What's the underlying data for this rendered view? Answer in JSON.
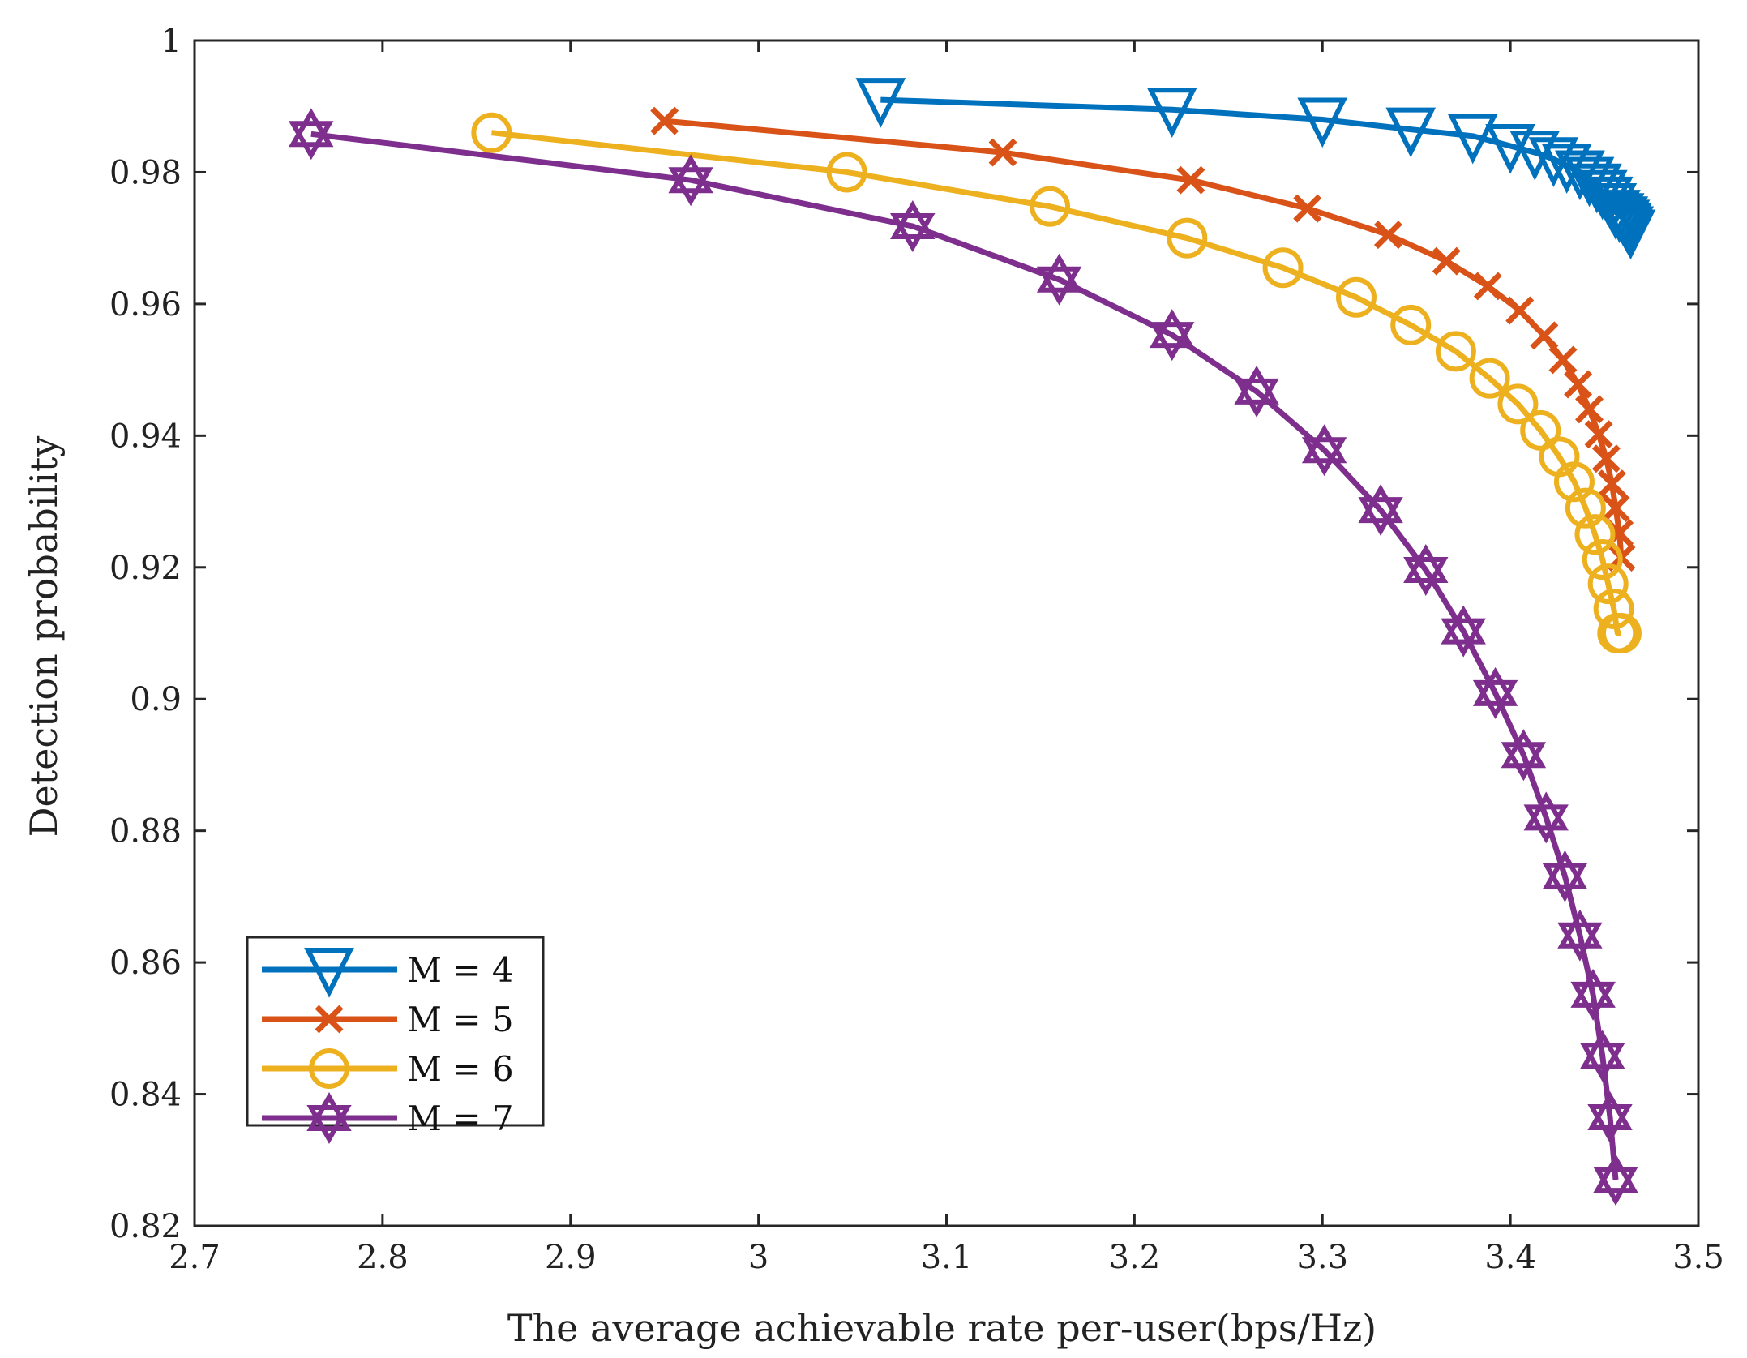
{
  "chart_data": {
    "type": "line",
    "title": "",
    "xlabel": "The average achievable rate per-user(bps/Hz)",
    "ylabel": "Detection probability",
    "xlim": [
      2.7,
      3.5
    ],
    "ylim": [
      0.82,
      1.0
    ],
    "xticks": [
      "2.7",
      "2.8",
      "2.9",
      "3",
      "3.1",
      "3.2",
      "3.3",
      "3.4",
      "3.5"
    ],
    "yticks": [
      "0.82",
      "0.84",
      "0.86",
      "0.88",
      "0.9",
      "0.92",
      "0.94",
      "0.96",
      "0.98",
      "1"
    ],
    "legend_position": "bottom-left",
    "series": [
      {
        "name": "M = 4",
        "color": "#0072BD",
        "marker": "triangle-down",
        "x": [
          3.065,
          3.22,
          3.3,
          3.347,
          3.38,
          3.4,
          3.413,
          3.423,
          3.43,
          3.437,
          3.442,
          3.446,
          3.449,
          3.452,
          3.454,
          3.456,
          3.458,
          3.46,
          3.461,
          3.462,
          3.463,
          3.464
        ],
        "y": [
          0.991,
          0.9895,
          0.988,
          0.9865,
          0.9855,
          0.984,
          0.983,
          0.982,
          0.981,
          0.98,
          0.979,
          0.978,
          0.977,
          0.976,
          0.975,
          0.974,
          0.9735,
          0.973,
          0.9725,
          0.972,
          0.9715,
          0.971
        ]
      },
      {
        "name": "M = 5",
        "color": "#D95319",
        "marker": "x",
        "x": [
          2.95,
          3.13,
          3.23,
          3.292,
          3.335,
          3.366,
          3.388,
          3.405,
          3.418,
          3.428,
          3.436,
          3.442,
          3.447,
          3.451,
          3.454,
          3.456,
          3.458,
          3.459
        ],
        "y": [
          0.9878,
          0.983,
          0.9788,
          0.9745,
          0.9705,
          0.9665,
          0.9627,
          0.959,
          0.9552,
          0.9515,
          0.9478,
          0.944,
          0.9402,
          0.9365,
          0.9327,
          0.929,
          0.9252,
          0.9215
        ]
      },
      {
        "name": "M = 6",
        "color": "#EDB120",
        "marker": "circle",
        "x": [
          2.858,
          3.047,
          3.155,
          3.228,
          3.279,
          3.318,
          3.347,
          3.371,
          3.389,
          3.404,
          3.416,
          3.426,
          3.434,
          3.44,
          3.445,
          3.449,
          3.452,
          3.455,
          3.457,
          3.459
        ],
        "y": [
          0.986,
          0.98,
          0.9748,
          0.97,
          0.9655,
          0.961,
          0.9568,
          0.9528,
          0.9487,
          0.9448,
          0.9408,
          0.9368,
          0.933,
          0.929,
          0.925,
          0.9212,
          0.9175,
          0.9137,
          0.91,
          0.91
        ]
      },
      {
        "name": "M = 7",
        "color": "#7E2F8E",
        "marker": "hexagram",
        "x": [
          2.762,
          2.964,
          3.082,
          3.16,
          3.22,
          3.265,
          3.301,
          3.331,
          3.355,
          3.375,
          3.392,
          3.407,
          3.419,
          3.429,
          3.437,
          3.444,
          3.449,
          3.453,
          3.456
        ],
        "y": [
          0.9858,
          0.9788,
          0.9718,
          0.9637,
          0.9553,
          0.9467,
          0.9378,
          0.9287,
          0.9196,
          0.9103,
          0.9009,
          0.8915,
          0.882,
          0.8731,
          0.8641,
          0.8551,
          0.8458,
          0.8365,
          0.827
        ]
      }
    ]
  }
}
